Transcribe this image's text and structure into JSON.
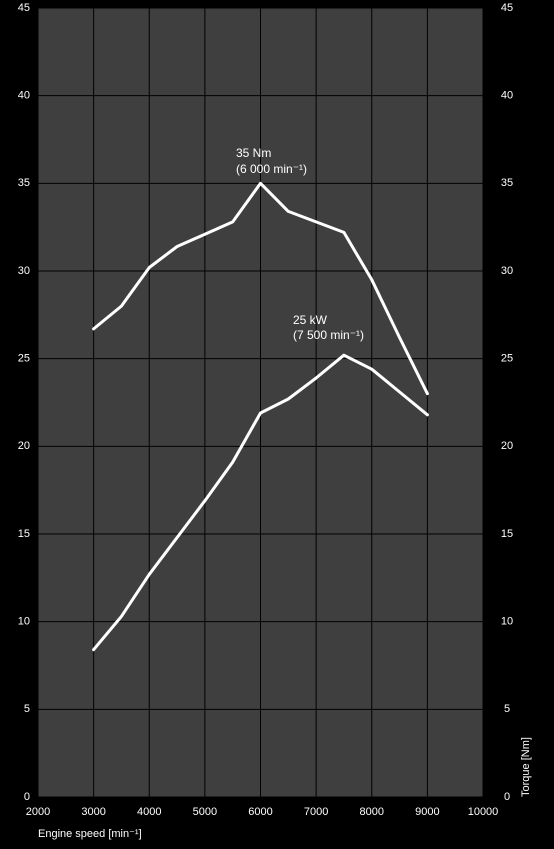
{
  "chart_data": {
    "type": "line",
    "x": [
      3000,
      3500,
      4000,
      4500,
      5000,
      5500,
      6000,
      6500,
      7000,
      7500,
      8000,
      8500,
      9000
    ],
    "series": [
      {
        "color": "#ffffff",
        "axis": "y2",
        "values": [
          26.7,
          28.0,
          30.2,
          31.4,
          32.1,
          32.8,
          35.0,
          33.4,
          32.8,
          32.2,
          29.5,
          26.2,
          23.0
        ]
      },
      {
        "color": "#ffffff",
        "values": [
          8.4,
          10.3,
          12.7,
          14.8,
          16.9,
          19.1,
          21.9,
          22.7,
          23.9,
          25.2,
          24.4,
          23.1,
          21.8
        ]
      }
    ],
    "xlabel": "Engine speed [min⁻¹]",
    "y2label": "Torque  [Nm]",
    "annotations": [
      "35 Nm",
      "(6 000 min⁻¹)",
      "25 kW",
      "(7 500 min⁻¹)"
    ],
    "xlim": [
      2000,
      10000
    ],
    "xticks": [
      2000,
      3000,
      4000,
      5000,
      6000,
      7000,
      8000,
      9000,
      10000
    ],
    "ylim": [
      0,
      45
    ],
    "yticks": [
      0,
      5,
      10,
      15,
      20,
      25,
      30,
      35,
      40,
      45
    ],
    "y2lim": [
      0,
      45
    ],
    "y2ticks": [
      0,
      5,
      10,
      15,
      20,
      25,
      30,
      35,
      40,
      45
    ],
    "grid": true,
    "plot_background": "#3f3f3f"
  }
}
